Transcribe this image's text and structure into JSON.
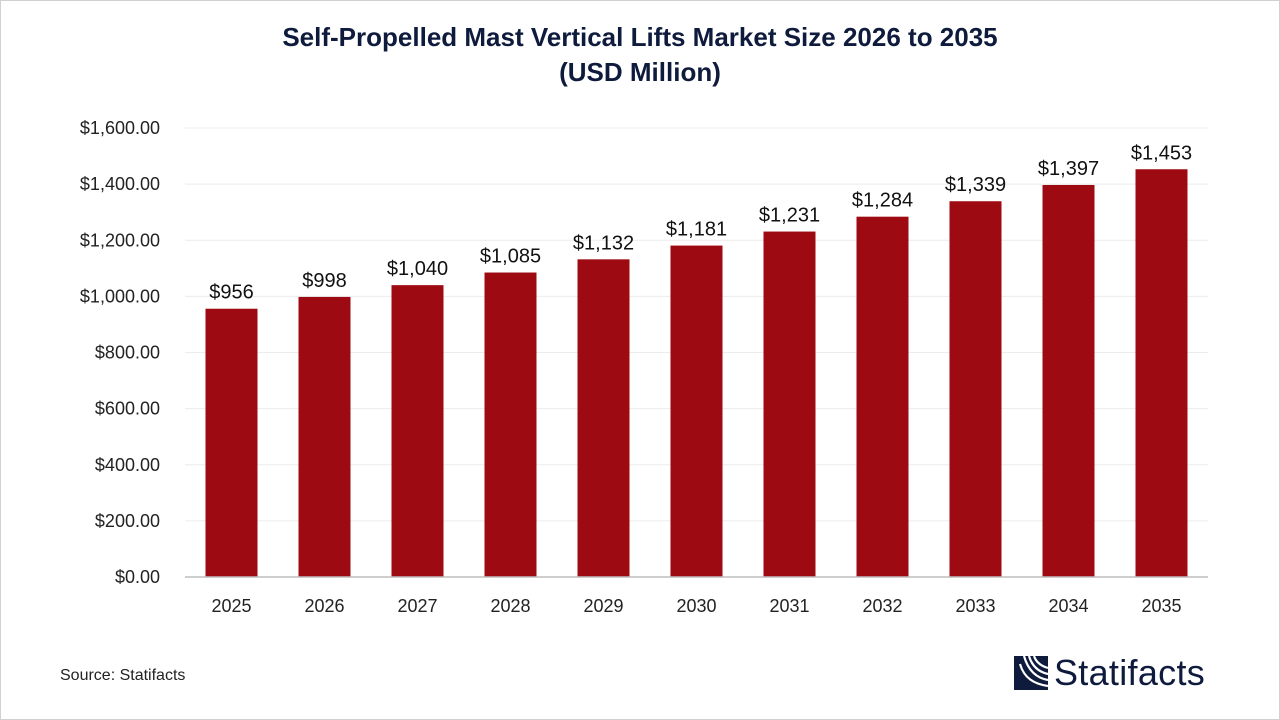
{
  "chart_data": {
    "type": "bar",
    "title": "Self-Propelled Mast Vertical Lifts Market Size 2026 to 2035",
    "subtitle": "(USD Million)",
    "categories": [
      "2025",
      "2026",
      "2027",
      "2028",
      "2029",
      "2030",
      "2031",
      "2032",
      "2033",
      "2034",
      "2035"
    ],
    "values": [
      956,
      998,
      1040,
      1085,
      1132,
      1181,
      1231,
      1284,
      1339,
      1397,
      1453
    ],
    "data_labels": [
      "$956",
      "$998",
      "$1,040",
      "$1,085",
      "$1,132",
      "$1,181",
      "$1,231",
      "$1,284",
      "$1,339",
      "$1,397",
      "$1,453"
    ],
    "yticks": [
      "$0.00",
      "$200.00",
      "$400.00",
      "$600.00",
      "$800.00",
      "$1,000.00",
      "$1,200.00",
      "$1,400.00",
      "$1,600.00"
    ],
    "ylim": [
      0,
      1600
    ],
    "grid": true,
    "bar_color": "#9e0a12"
  },
  "source": "Source: Statifacts",
  "logo": {
    "text": "Statifacts",
    "color": "#0f1b3d"
  }
}
